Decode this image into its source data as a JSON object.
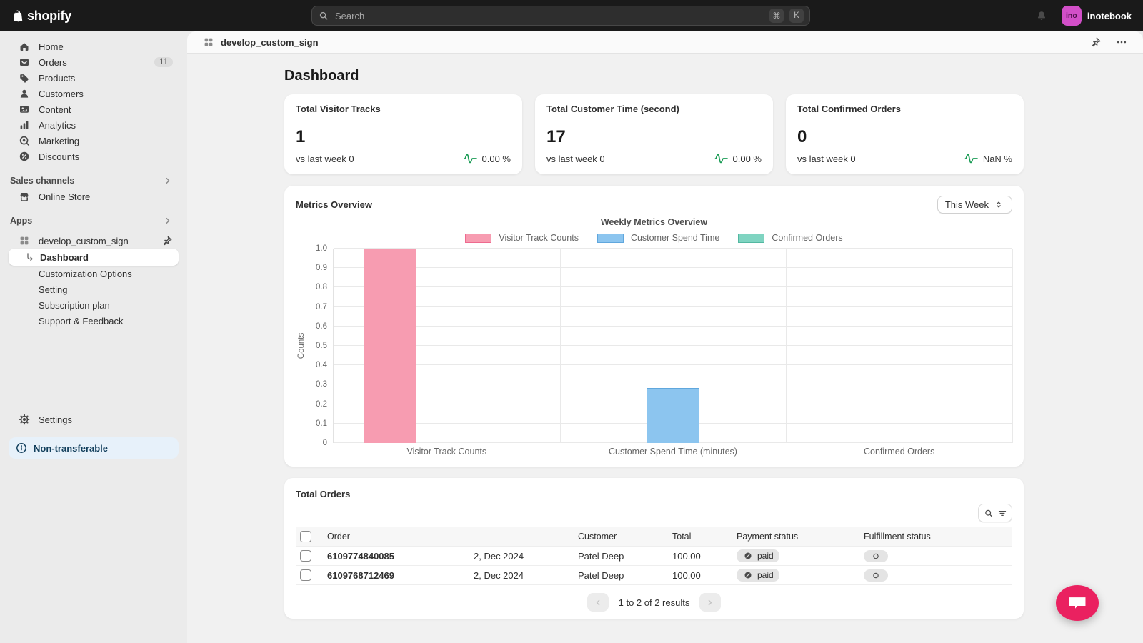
{
  "topbar": {
    "brand": "shopify",
    "search": {
      "placeholder": "Search",
      "shortcut_keys": [
        "⌘",
        "K"
      ]
    },
    "user": {
      "initials": "ino",
      "name": "inotebook",
      "avatar_color": "#d24fc8"
    }
  },
  "sidebar": {
    "nav": [
      {
        "label": "Home",
        "icon": "home-icon"
      },
      {
        "label": "Orders",
        "icon": "orders-icon",
        "badge": "11"
      },
      {
        "label": "Products",
        "icon": "products-icon"
      },
      {
        "label": "Customers",
        "icon": "customers-icon"
      },
      {
        "label": "Content",
        "icon": "content-icon"
      },
      {
        "label": "Analytics",
        "icon": "analytics-icon"
      },
      {
        "label": "Marketing",
        "icon": "marketing-icon"
      },
      {
        "label": "Discounts",
        "icon": "discounts-icon"
      }
    ],
    "sales_channels": {
      "title": "Sales channels",
      "items": [
        {
          "label": "Online Store",
          "icon": "store-icon"
        }
      ]
    },
    "apps": {
      "title": "Apps",
      "app": {
        "label": "develop_custom_sign",
        "icon": "app-grid-icon"
      },
      "subnav": [
        {
          "label": "Dashboard",
          "active": true
        },
        {
          "label": "Customization Options"
        },
        {
          "label": "Setting"
        },
        {
          "label": "Subscription plan"
        },
        {
          "label": "Support & Feedback"
        }
      ]
    },
    "settings_label": "Settings",
    "banner": "Non-transferable"
  },
  "header": {
    "title": "develop_custom_sign"
  },
  "page_title": "Dashboard",
  "metric_cards": [
    {
      "title": "Total Visitor Tracks",
      "value": "1",
      "compare": "vs last week 0",
      "delta": "0.00 %"
    },
    {
      "title": "Total Customer Time (second)",
      "value": "17",
      "compare": "vs last week 0",
      "delta": "0.00 %"
    },
    {
      "title": "Total Confirmed Orders",
      "value": "0",
      "compare": "vs last week 0",
      "delta": "NaN %"
    }
  ],
  "metrics_overview": {
    "title": "Metrics Overview",
    "range_selector": "This Week",
    "chart_data": {
      "type": "bar",
      "title": "Weekly Metrics Overview",
      "ylabel": "Counts",
      "ylim": [
        0,
        1
      ],
      "yticks": [
        "0",
        "0.1",
        "0.2",
        "0.3",
        "0.4",
        "0.5",
        "0.6",
        "0.7",
        "0.8",
        "0.9",
        "1.0"
      ],
      "categories": [
        "Visitor Track Counts",
        "Customer Spend Time (minutes)",
        "Confirmed Orders"
      ],
      "series": [
        {
          "name": "Visitor Track Counts",
          "values": [
            1,
            0,
            0
          ],
          "fill": "#f79cb1",
          "border": "#ee6a8f"
        },
        {
          "name": "Customer Spend Time",
          "values": [
            0,
            0.2833,
            0
          ],
          "fill": "#8cc5ef",
          "border": "#60a7dd"
        },
        {
          "name": "Confirmed Orders",
          "values": [
            0,
            0,
            0
          ],
          "fill": "#7fd4c1",
          "border": "#53b8a1"
        }
      ],
      "grid": true,
      "legend_position": "top"
    }
  },
  "orders": {
    "title": "Total Orders",
    "columns": [
      "Order",
      "Customer",
      "Total",
      "Payment status",
      "Fulfillment status"
    ],
    "rows": [
      {
        "order": "6109774840085",
        "date": "2, Dec 2024",
        "customer": "Patel Deep",
        "total": "100.00",
        "payment_status": "paid",
        "fulfillment_status": "O"
      },
      {
        "order": "6109768712469",
        "date": "2, Dec 2024",
        "customer": "Patel Deep",
        "total": "100.00",
        "payment_status": "paid",
        "fulfillment_status": "O"
      }
    ],
    "pagination": {
      "label": "1 to 2 of 2 results"
    }
  },
  "chat": {
    "color": "#ea2160"
  }
}
